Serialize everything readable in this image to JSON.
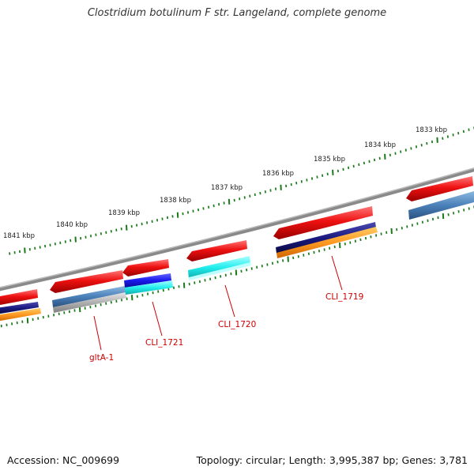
{
  "title": "Clostridium botulinum F str. Langeland, complete genome",
  "footer": {
    "accession": "Accession: NC_009699",
    "summary": "Topology: circular; Length: 3,995,387 bp; Genes: 3,781"
  },
  "ruler_labels": [
    "1841 kbp",
    "1840 kbp",
    "1839 kbp",
    "1838 kbp",
    "1837 kbp",
    "1836 kbp",
    "1835 kbp",
    "1834 kbp",
    "1833 kbp"
  ],
  "gene_labels": [
    "gltA-1",
    "CLI_1721",
    "CLI_1720",
    "CLI_1719"
  ],
  "colors": {
    "backbone": "#7a7a7a",
    "tick": "#1a7a1a",
    "cds": "#ee1111",
    "navy": "#1a1a80",
    "orange": "#ff9922",
    "steel_blue": "#4a80b8",
    "silver": "#b0b0b0",
    "blue": "#1a1aee",
    "cyan": "#22eeee",
    "label": "#cc0000"
  }
}
